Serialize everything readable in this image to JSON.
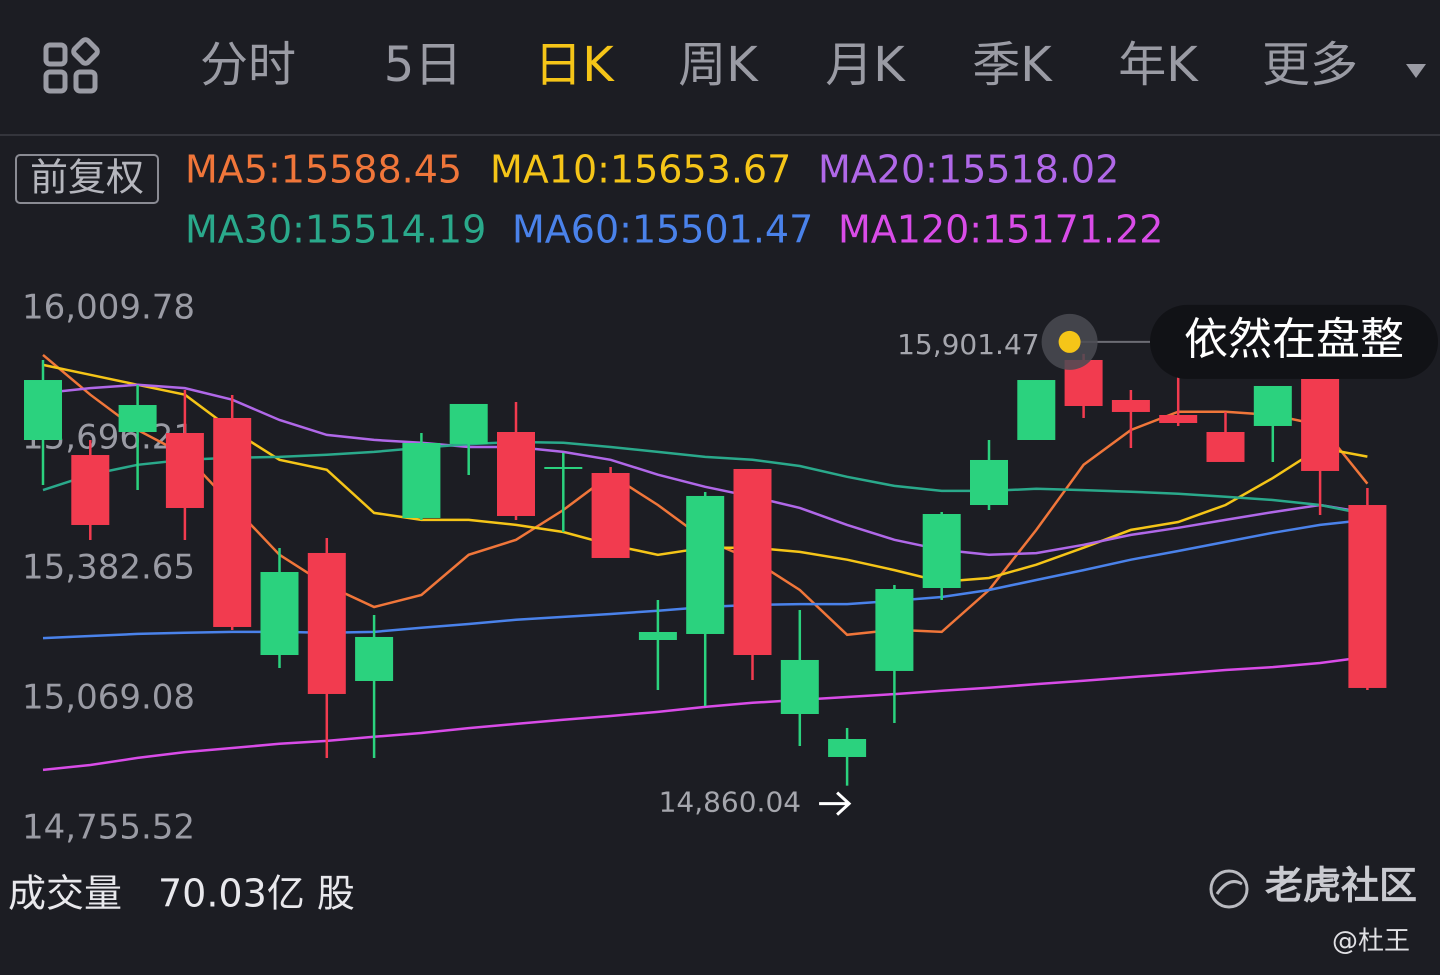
{
  "toolbar": {
    "tabs": [
      "分时",
      "5日",
      "日K",
      "周K",
      "月K",
      "季K",
      "年K",
      "更多"
    ],
    "active": 2,
    "adjust": "前复权"
  },
  "chart_data": {
    "type": "candlestick",
    "up_color": "#2bd27e",
    "down_color": "#f23b4f",
    "ylim": [
      14755.52,
      16009.78
    ],
    "yticks": [
      {
        "value": 16009.78,
        "label": "16,009.78"
      },
      {
        "value": 15696.21,
        "label": "15,696.21"
      },
      {
        "value": 15382.65,
        "label": "15,382.65"
      },
      {
        "value": 15069.08,
        "label": "15,069.08"
      },
      {
        "value": 14755.52,
        "label": "14,755.52"
      }
    ],
    "grid": false,
    "open": [
      15693.8,
      15657.6,
      15713.1,
      15710.7,
      15746.9,
      15175.2,
      15421.3,
      15112.5,
      15505.7,
      15684.2,
      15713.1,
      15623.9,
      15614.2,
      15211.4,
      15225.9,
      15623.9,
      15032.9,
      14929.2,
      15136.7,
      15336.8,
      15537.0,
      15693.8,
      15886.8,
      15790.3,
      15754.1,
      15713.1,
      15727.6,
      15841.0,
      15537.0
    ],
    "high": [
      15886.8,
      15693.8,
      15826.5,
      15814.4,
      15802.4,
      15433.3,
      15457.5,
      15271.7,
      15710.7,
      15780.7,
      15785.5,
      15662.5,
      15628.7,
      15307.9,
      15568.4,
      15623.9,
      15283.8,
      14999.2,
      15344.1,
      15520.2,
      15693.8,
      15838.5,
      15901.47,
      15814.4,
      15857.8,
      15761.4,
      15824.1,
      15841.0,
      15578.1
    ],
    "low": [
      15585.3,
      15452.6,
      15573.2,
      15452.6,
      15235.5,
      15143.9,
      14926.8,
      14926.8,
      15500.9,
      15609.4,
      15500.9,
      15471.9,
      15409.2,
      15090.8,
      15052.2,
      15114.9,
      14955.8,
      14860.04,
      15011.2,
      15307.9,
      15525.0,
      15693.8,
      15746.9,
      15674.5,
      15727.6,
      15640.8,
      15640.8,
      15512.9,
      15090.8
    ],
    "close": [
      15838.5,
      15488.8,
      15778.2,
      15529.8,
      15242.8,
      15375.4,
      15081.2,
      15218.7,
      15686.6,
      15780.7,
      15510.5,
      15628.7,
      15409.2,
      15230.7,
      15558.8,
      15175.2,
      15163.2,
      14972.6,
      15334.4,
      15515.3,
      15645.6,
      15838.5,
      15775.8,
      15761.4,
      15734.8,
      15640.8,
      15824.1,
      15619.1,
      15095.7
    ],
    "series": [
      {
        "name": "MA5:15588.45",
        "color": "#f0763a",
        "values": [
          15899,
          15803,
          15718,
          15658,
          15537,
          15417,
          15344,
          15291,
          15320,
          15417,
          15453,
          15525,
          15610,
          15537,
          15453,
          15405,
          15332,
          15224,
          15236,
          15231,
          15332,
          15477,
          15634,
          15718,
          15762,
          15762,
          15754,
          15730,
          15588.45
        ]
      },
      {
        "name": "MA10:15653.67",
        "color": "#f5c518",
        "values": [
          15875,
          15851,
          15827,
          15803,
          15718,
          15646,
          15622,
          15518,
          15501,
          15501,
          15489,
          15472,
          15441,
          15417,
          15434,
          15434,
          15424,
          15405,
          15380,
          15352,
          15361,
          15393,
          15434,
          15477,
          15496,
          15537,
          15602,
          15675,
          15653.67
        ]
      },
      {
        "name": "MA20:15518.02",
        "color": "#b068e8",
        "values": [
          15807,
          15819,
          15827,
          15819,
          15791,
          15742,
          15706,
          15694,
          15687,
          15677,
          15677,
          15665,
          15646,
          15610,
          15581,
          15557,
          15530,
          15489,
          15453,
          15429,
          15417,
          15421,
          15441,
          15465,
          15482,
          15501,
          15520,
          15537,
          15518.02
        ]
      },
      {
        "name": "MA30:15514.19",
        "color": "#2aa98b",
        "values": [
          15573,
          15610,
          15634,
          15646,
          15651,
          15653,
          15658,
          15665,
          15675,
          15684,
          15689,
          15687,
          15677,
          15665,
          15653,
          15646,
          15631,
          15605,
          15583,
          15571,
          15571,
          15576,
          15573,
          15569,
          15564,
          15557,
          15549,
          15537,
          15514.19
        ]
      },
      {
        "name": "MA60:15501.47",
        "color": "#4a82ea",
        "values": [
          15216,
          15221,
          15226,
          15229,
          15231,
          15231,
          15229,
          15231,
          15241,
          15250,
          15260,
          15267,
          15274,
          15282,
          15291,
          15296,
          15298,
          15298,
          15306,
          15315,
          15332,
          15356,
          15380,
          15405,
          15426,
          15448,
          15470,
          15489,
          15501.47
        ]
      },
      {
        "name": "MA120:15171.22",
        "color": "#d94ce8",
        "values": [
          14898,
          14910,
          14927,
          14941,
          14951,
          14961,
          14968,
          14978,
          14987,
          14999,
          15009,
          15019,
          15028,
          15038,
          15050,
          15060,
          15067,
          15074,
          15081,
          15089,
          15096,
          15105,
          15113,
          15122,
          15130,
          15139,
          15146,
          15156,
          15171.22
        ]
      }
    ],
    "annotations": {
      "high": {
        "value": 15901.47,
        "label": "15,901.47"
      },
      "low": {
        "value": 14860.04,
        "label": "14,860.04"
      },
      "note": "依然在盘整"
    }
  },
  "volume": {
    "label": "成交量",
    "value_text": "70.03亿 股"
  },
  "watermark": {
    "brand": "老虎社区",
    "author": "@杜王"
  }
}
